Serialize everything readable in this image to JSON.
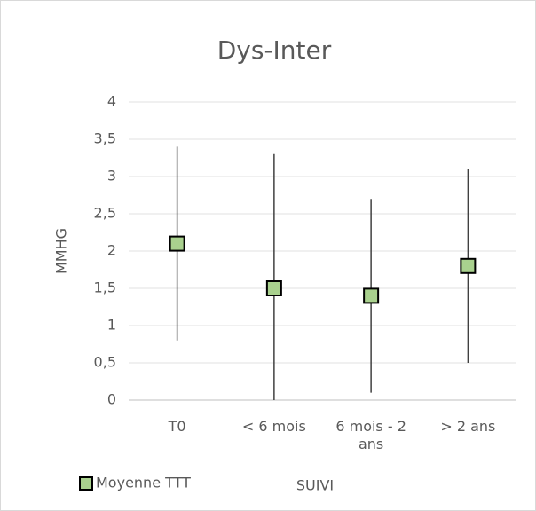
{
  "chart_data": {
    "type": "errorbar",
    "title": "Dys-Inter",
    "x_label": "SUIVI",
    "y_label": "MMHG",
    "categories": [
      "T0",
      "< 6 mois",
      "6 mois - 2 ans",
      "> 2 ans"
    ],
    "series": [
      {
        "name": "Moyenne TTT",
        "color": "#a9d18e",
        "values": [
          2.1,
          1.5,
          1.4,
          1.8
        ],
        "error": [
          1.3,
          1.8,
          1.3,
          1.3
        ]
      }
    ],
    "ylim": [
      0,
      4
    ],
    "yticks": [
      0,
      {
        "value": 0.5,
        "label": "0,5"
      },
      1,
      {
        "value": 1.5,
        "label": "1,5"
      },
      2,
      {
        "value": 2.5,
        "label": "2,5"
      },
      3,
      {
        "value": 3.5,
        "label": "3,5"
      },
      4
    ],
    "grid": true,
    "legend": "bottom-left"
  }
}
